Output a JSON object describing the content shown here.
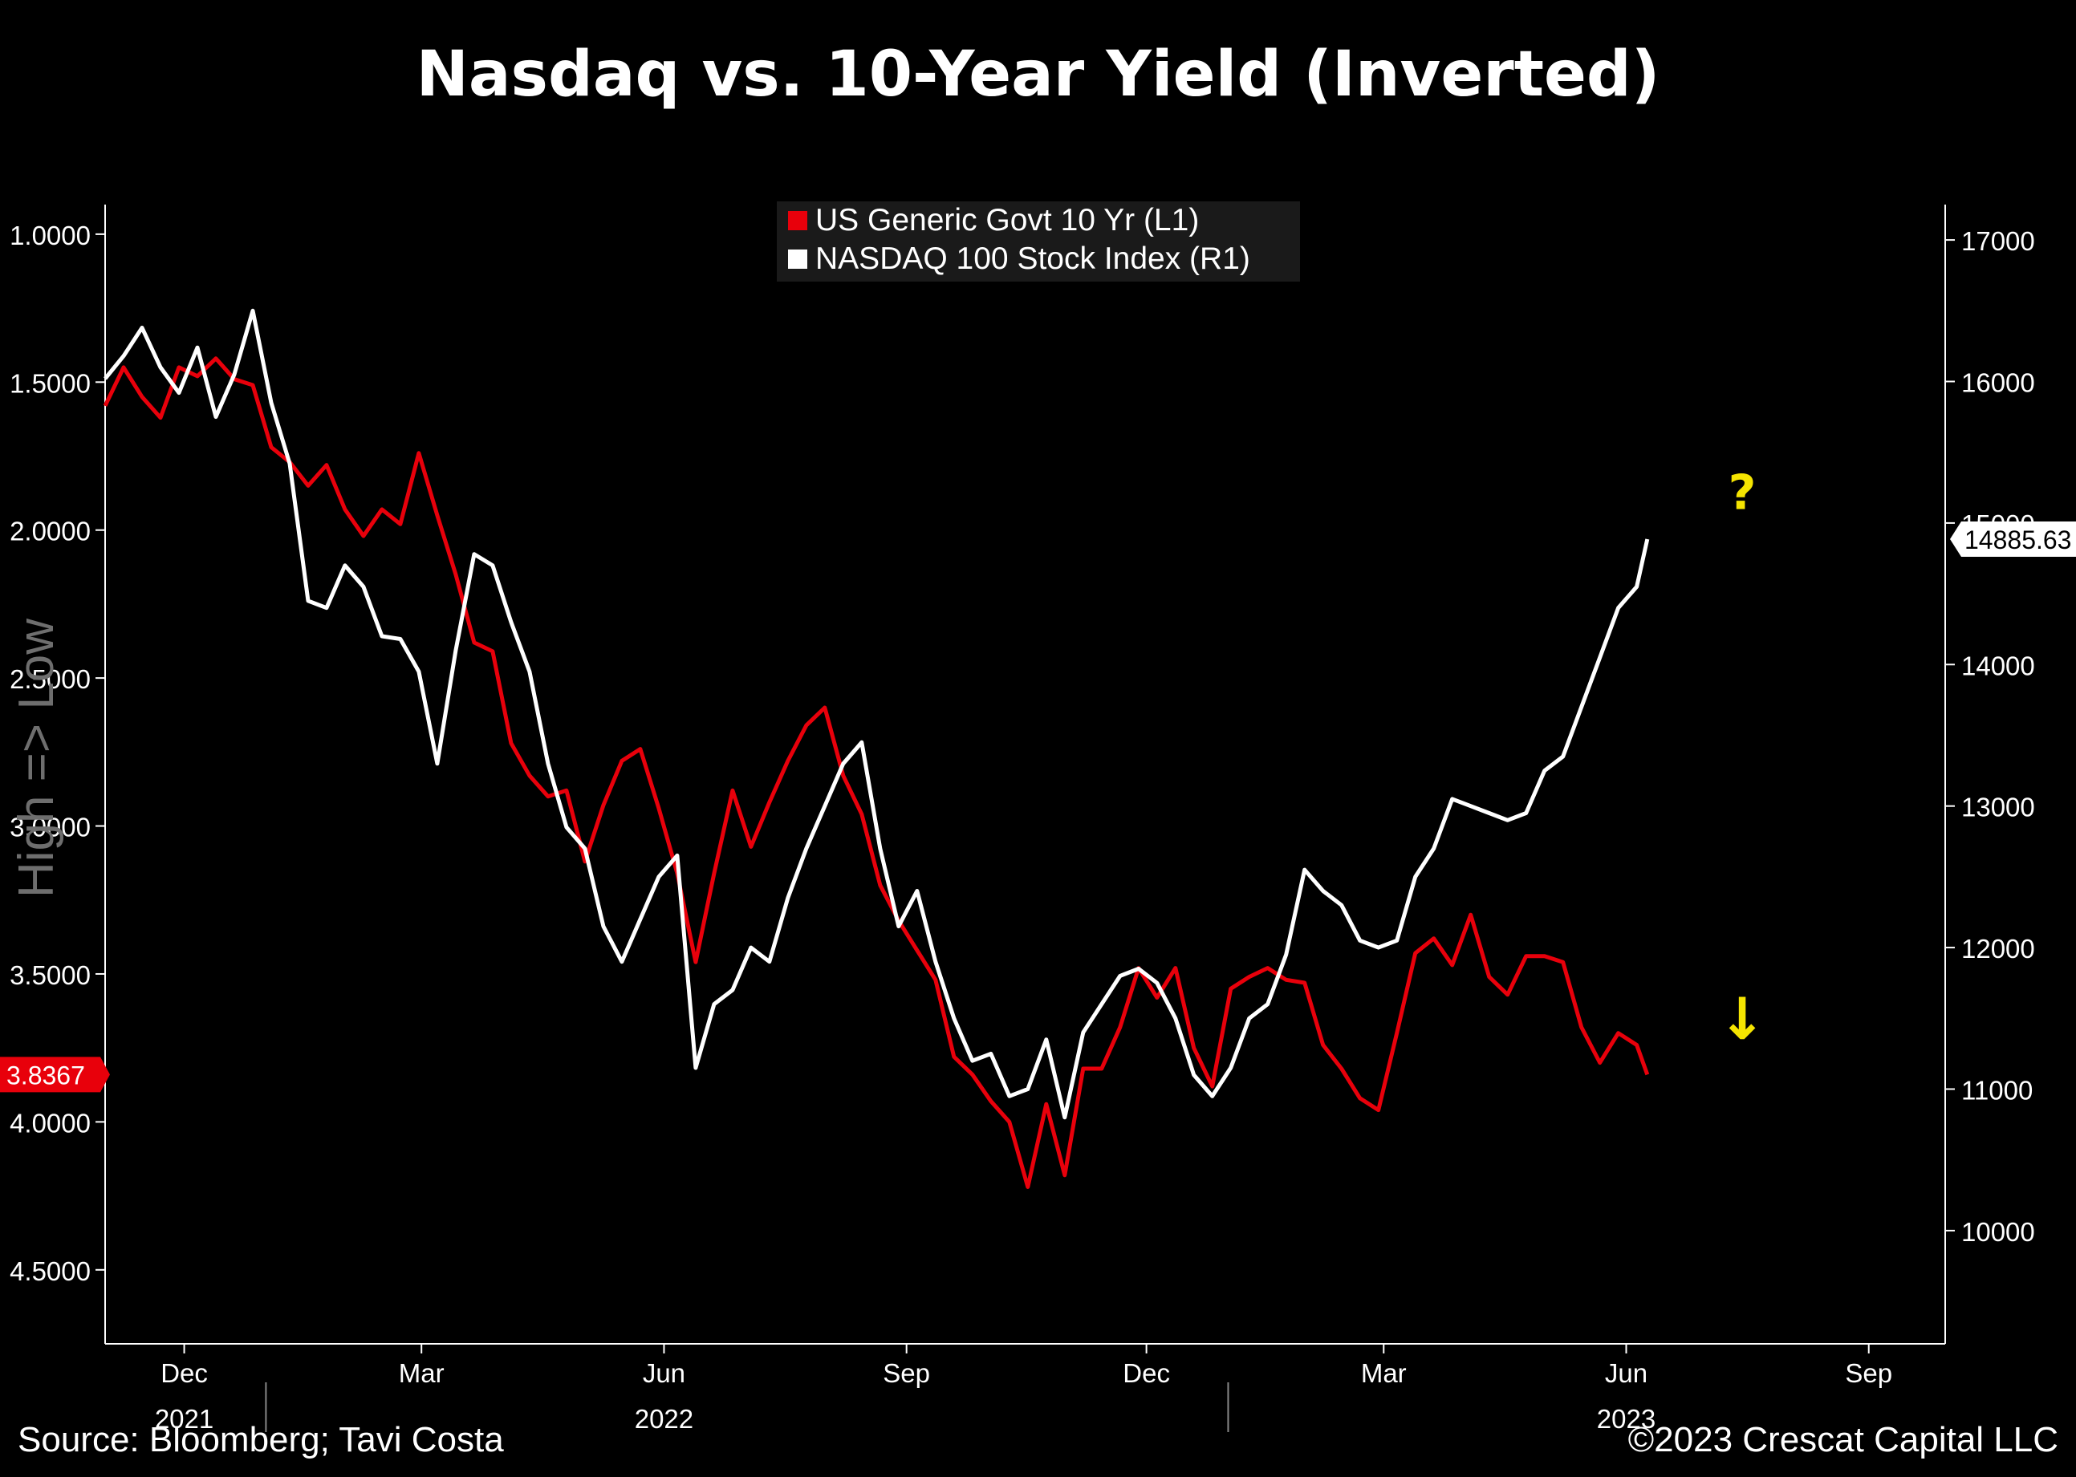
{
  "chart_data": {
    "type": "line",
    "title": "Nasdaq vs. 10-Year Yield (Inverted)",
    "left_axis_label": "High => Low",
    "source": "Source: Bloomberg; Tavi Costa",
    "copyright": "©2023 Crescat Capital LLC",
    "left_axis": {
      "inverted": true,
      "range": [
        0.9,
        4.75
      ],
      "ticks": [
        1.0,
        1.5,
        2.0,
        2.5,
        3.0,
        3.5,
        4.0,
        4.5
      ],
      "tick_labels": [
        "1.0000",
        "1.5000",
        "2.0000",
        "2.5000",
        "3.0000",
        "3.5000",
        "4.0000",
        "4.5000"
      ]
    },
    "right_axis": {
      "range": [
        9200,
        17250
      ],
      "ticks": [
        10000,
        11000,
        12000,
        13000,
        14000,
        15000,
        16000,
        17000
      ],
      "tick_labels": [
        "10000",
        "11000",
        "12000",
        "13000",
        "14000",
        "15000",
        "16000",
        "17000"
      ]
    },
    "x_axis": {
      "range": [
        "2021-11-01",
        "2023-09-30"
      ],
      "ticks": [
        {
          "date": "2021-12-01",
          "label": "Dec"
        },
        {
          "date": "2022-03-01",
          "label": "Mar"
        },
        {
          "date": "2022-06-01",
          "label": "Jun"
        },
        {
          "date": "2022-09-01",
          "label": "Sep"
        },
        {
          "date": "2022-12-01",
          "label": "Dec"
        },
        {
          "date": "2023-03-01",
          "label": "Mar"
        },
        {
          "date": "2023-06-01",
          "label": "Jun"
        },
        {
          "date": "2023-09-01",
          "label": "Sep"
        }
      ],
      "year_labels": [
        {
          "date": "2021-12-01",
          "label": "2021"
        },
        {
          "date": "2022-06-01",
          "label": "2022"
        },
        {
          "date": "2023-06-01",
          "label": "2023"
        }
      ]
    },
    "legend": {
      "position": "top-center",
      "entries": [
        "US Generic Govt 10 Yr  (L1)",
        "NASDAQ 100 Stock Index  (R1)"
      ]
    },
    "last_value_labels": {
      "yield": "3.8367",
      "nasdaq": "14885.63"
    },
    "annotations": [
      {
        "text": "?",
        "date": "2023-07-15",
        "series": "nasdaq",
        "value": 15100,
        "color": "#f5e400"
      },
      {
        "text": "↓",
        "date": "2023-07-15",
        "series": "yield",
        "value": 3.72,
        "color": "#f5e400"
      }
    ],
    "colors": {
      "yield": "#e8000b",
      "nasdaq": "#ffffff",
      "axis": "#ffffff",
      "annotation": "#f5e400",
      "legend_bg": "#1a1a1a"
    },
    "series": [
      {
        "name": "US Generic Govt 10 Yr  (L1)",
        "axis": "left",
        "color": "#e8000b",
        "points": [
          [
            "2021-11-01",
            1.58
          ],
          [
            "2021-11-08",
            1.45
          ],
          [
            "2021-11-15",
            1.55
          ],
          [
            "2021-11-22",
            1.62
          ],
          [
            "2021-11-29",
            1.45
          ],
          [
            "2021-12-06",
            1.48
          ],
          [
            "2021-12-13",
            1.42
          ],
          [
            "2021-12-20",
            1.49
          ],
          [
            "2021-12-27",
            1.51
          ],
          [
            "2022-01-03",
            1.72
          ],
          [
            "2022-01-10",
            1.77
          ],
          [
            "2022-01-17",
            1.85
          ],
          [
            "2022-01-24",
            1.78
          ],
          [
            "2022-01-31",
            1.93
          ],
          [
            "2022-02-07",
            2.02
          ],
          [
            "2022-02-14",
            1.93
          ],
          [
            "2022-02-21",
            1.98
          ],
          [
            "2022-02-28",
            1.74
          ],
          [
            "2022-03-07",
            1.95
          ],
          [
            "2022-03-14",
            2.15
          ],
          [
            "2022-03-21",
            2.38
          ],
          [
            "2022-03-28",
            2.41
          ],
          [
            "2022-04-04",
            2.72
          ],
          [
            "2022-04-11",
            2.83
          ],
          [
            "2022-04-18",
            2.9
          ],
          [
            "2022-04-25",
            2.88
          ],
          [
            "2022-05-02",
            3.12
          ],
          [
            "2022-05-09",
            2.93
          ],
          [
            "2022-05-16",
            2.78
          ],
          [
            "2022-05-23",
            2.74
          ],
          [
            "2022-05-30",
            2.94
          ],
          [
            "2022-06-06",
            3.16
          ],
          [
            "2022-06-13",
            3.46
          ],
          [
            "2022-06-20",
            3.16
          ],
          [
            "2022-06-27",
            2.88
          ],
          [
            "2022-07-04",
            3.07
          ],
          [
            "2022-07-11",
            2.92
          ],
          [
            "2022-07-18",
            2.78
          ],
          [
            "2022-07-25",
            2.66
          ],
          [
            "2022-08-01",
            2.6
          ],
          [
            "2022-08-08",
            2.83
          ],
          [
            "2022-08-15",
            2.96
          ],
          [
            "2022-08-22",
            3.2
          ],
          [
            "2022-08-29",
            3.32
          ],
          [
            "2022-09-05",
            3.42
          ],
          [
            "2022-09-12",
            3.52
          ],
          [
            "2022-09-19",
            3.78
          ],
          [
            "2022-09-26",
            3.84
          ],
          [
            "2022-10-03",
            3.93
          ],
          [
            "2022-10-10",
            4.0
          ],
          [
            "2022-10-17",
            4.22
          ],
          [
            "2022-10-24",
            3.94
          ],
          [
            "2022-10-31",
            4.18
          ],
          [
            "2022-11-07",
            3.82
          ],
          [
            "2022-11-14",
            3.82
          ],
          [
            "2022-11-21",
            3.68
          ],
          [
            "2022-11-28",
            3.48
          ],
          [
            "2022-12-05",
            3.58
          ],
          [
            "2022-12-12",
            3.48
          ],
          [
            "2022-12-19",
            3.75
          ],
          [
            "2022-12-26",
            3.88
          ],
          [
            "2023-01-02",
            3.55
          ],
          [
            "2023-01-09",
            3.51
          ],
          [
            "2023-01-16",
            3.48
          ],
          [
            "2023-01-23",
            3.52
          ],
          [
            "2023-01-30",
            3.53
          ],
          [
            "2023-02-06",
            3.74
          ],
          [
            "2023-02-13",
            3.82
          ],
          [
            "2023-02-20",
            3.92
          ],
          [
            "2023-02-27",
            3.96
          ],
          [
            "2023-03-06",
            3.7
          ],
          [
            "2023-03-13",
            3.43
          ],
          [
            "2023-03-20",
            3.38
          ],
          [
            "2023-03-27",
            3.47
          ],
          [
            "2023-04-03",
            3.3
          ],
          [
            "2023-04-10",
            3.51
          ],
          [
            "2023-04-17",
            3.57
          ],
          [
            "2023-04-24",
            3.44
          ],
          [
            "2023-05-01",
            3.44
          ],
          [
            "2023-05-08",
            3.46
          ],
          [
            "2023-05-15",
            3.68
          ],
          [
            "2023-05-22",
            3.8
          ],
          [
            "2023-05-29",
            3.7
          ],
          [
            "2023-06-05",
            3.74
          ],
          [
            "2023-06-09",
            3.84
          ]
        ]
      },
      {
        "name": "NASDAQ 100 Stock Index  (R1)",
        "axis": "right",
        "color": "#ffffff",
        "points": [
          [
            "2021-11-01",
            16020
          ],
          [
            "2021-11-08",
            16180
          ],
          [
            "2021-11-15",
            16380
          ],
          [
            "2021-11-22",
            16100
          ],
          [
            "2021-11-29",
            15920
          ],
          [
            "2021-12-06",
            16240
          ],
          [
            "2021-12-13",
            15750
          ],
          [
            "2021-12-20",
            16050
          ],
          [
            "2021-12-27",
            16500
          ],
          [
            "2022-01-03",
            15850
          ],
          [
            "2022-01-10",
            15420
          ],
          [
            "2022-01-17",
            14450
          ],
          [
            "2022-01-24",
            14400
          ],
          [
            "2022-01-31",
            14700
          ],
          [
            "2022-02-07",
            14550
          ],
          [
            "2022-02-14",
            14200
          ],
          [
            "2022-02-21",
            14180
          ],
          [
            "2022-02-28",
            13950
          ],
          [
            "2022-03-07",
            13300
          ],
          [
            "2022-03-14",
            14100
          ],
          [
            "2022-03-21",
            14780
          ],
          [
            "2022-03-28",
            14700
          ],
          [
            "2022-04-04",
            14300
          ],
          [
            "2022-04-11",
            13950
          ],
          [
            "2022-04-18",
            13300
          ],
          [
            "2022-04-25",
            12850
          ],
          [
            "2022-05-02",
            12700
          ],
          [
            "2022-05-09",
            12150
          ],
          [
            "2022-05-16",
            11900
          ],
          [
            "2022-05-23",
            12200
          ],
          [
            "2022-05-30",
            12500
          ],
          [
            "2022-06-06",
            12650
          ],
          [
            "2022-06-13",
            11150
          ],
          [
            "2022-06-20",
            11600
          ],
          [
            "2022-06-27",
            11700
          ],
          [
            "2022-07-04",
            12000
          ],
          [
            "2022-07-11",
            11900
          ],
          [
            "2022-07-18",
            12350
          ],
          [
            "2022-07-25",
            12700
          ],
          [
            "2022-08-01",
            13000
          ],
          [
            "2022-08-08",
            13300
          ],
          [
            "2022-08-15",
            13450
          ],
          [
            "2022-08-22",
            12700
          ],
          [
            "2022-08-29",
            12150
          ],
          [
            "2022-09-05",
            12400
          ],
          [
            "2022-09-12",
            11900
          ],
          [
            "2022-09-19",
            11500
          ],
          [
            "2022-09-26",
            11200
          ],
          [
            "2022-10-03",
            11250
          ],
          [
            "2022-10-10",
            10950
          ],
          [
            "2022-10-17",
            11000
          ],
          [
            "2022-10-24",
            11350
          ],
          [
            "2022-10-31",
            10800
          ],
          [
            "2022-11-07",
            11400
          ],
          [
            "2022-11-14",
            11600
          ],
          [
            "2022-11-21",
            11800
          ],
          [
            "2022-11-28",
            11850
          ],
          [
            "2022-12-05",
            11750
          ],
          [
            "2022-12-12",
            11500
          ],
          [
            "2022-12-19",
            11100
          ],
          [
            "2022-12-26",
            10950
          ],
          [
            "2023-01-02",
            11150
          ],
          [
            "2023-01-09",
            11500
          ],
          [
            "2023-01-16",
            11600
          ],
          [
            "2023-01-23",
            11950
          ],
          [
            "2023-01-30",
            12550
          ],
          [
            "2023-02-06",
            12400
          ],
          [
            "2023-02-13",
            12300
          ],
          [
            "2023-02-20",
            12050
          ],
          [
            "2023-02-27",
            12000
          ],
          [
            "2023-03-06",
            12050
          ],
          [
            "2023-03-13",
            12500
          ],
          [
            "2023-03-20",
            12700
          ],
          [
            "2023-03-27",
            13050
          ],
          [
            "2023-04-03",
            13000
          ],
          [
            "2023-04-10",
            12950
          ],
          [
            "2023-04-17",
            12900
          ],
          [
            "2023-04-24",
            12950
          ],
          [
            "2023-05-01",
            13250
          ],
          [
            "2023-05-08",
            13350
          ],
          [
            "2023-05-15",
            13700
          ],
          [
            "2023-05-22",
            14050
          ],
          [
            "2023-05-29",
            14400
          ],
          [
            "2023-06-05",
            14550
          ],
          [
            "2023-06-09",
            14886
          ]
        ]
      }
    ]
  }
}
